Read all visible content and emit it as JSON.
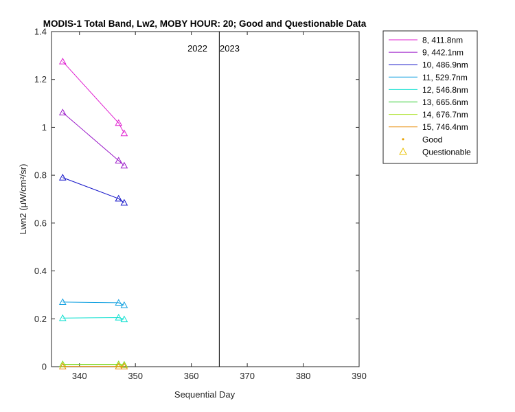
{
  "chart_data": {
    "type": "line",
    "title": "MODIS-1 Total Band, Lw2, MOBY HOUR: 20;  Good and Questionable Data",
    "xlabel": "Sequential Day",
    "ylabel": "Lwn2 (μW/cm²/sr)",
    "xlim": [
      335,
      390
    ],
    "ylim": [
      0,
      1.4
    ],
    "xticks": [
      340,
      350,
      360,
      370,
      380,
      390
    ],
    "yticks": [
      0,
      0.2,
      0.4,
      0.6,
      0.8,
      1,
      1.2,
      1.4
    ],
    "grid": false,
    "legend_position": "outside-right",
    "year_divider": {
      "x": 365,
      "left_label": "2022",
      "right_label": "2023"
    },
    "series": [
      {
        "name": "8, 411.8nm",
        "color": "#e020d0",
        "x": [
          337,
          347,
          348
        ],
        "y": [
          1.275,
          1.018,
          0.975
        ],
        "marker": "questionable"
      },
      {
        "name": "9, 442.1nm",
        "color": "#9a18c8",
        "x": [
          337,
          347,
          348
        ],
        "y": [
          1.062,
          0.861,
          0.84
        ],
        "marker": "questionable"
      },
      {
        "name": "10, 486.9nm",
        "color": "#1010c8",
        "x": [
          337,
          347,
          348
        ],
        "y": [
          0.79,
          0.702,
          0.685
        ],
        "marker": "questionable"
      },
      {
        "name": "11, 529.7nm",
        "color": "#10a0e0",
        "x": [
          337,
          347,
          348
        ],
        "y": [
          0.27,
          0.267,
          0.257
        ],
        "marker": "questionable"
      },
      {
        "name": "12, 546.8nm",
        "color": "#10e0d0",
        "x": [
          337,
          347,
          348
        ],
        "y": [
          0.203,
          0.205,
          0.198
        ],
        "marker": "questionable"
      },
      {
        "name": "13, 665.6nm",
        "color": "#20c820",
        "x": [
          337,
          347,
          348
        ],
        "y": [
          0.01,
          0.01,
          0.008
        ],
        "marker": "questionable"
      },
      {
        "name": "14, 676.7nm",
        "color": "#a8e020",
        "x": [
          337,
          347,
          348
        ],
        "y": [
          0.009,
          0.009,
          0.007
        ],
        "marker": "questionable"
      },
      {
        "name": "15, 746.4nm",
        "color": "#e89010",
        "x": [
          337,
          347,
          348
        ],
        "y": [
          0.001,
          0.001,
          0.001
        ],
        "marker": "questionable"
      }
    ],
    "legend_markers": [
      {
        "label": "Good",
        "color": "#e8a000",
        "symbol": "dot"
      },
      {
        "label": "Questionable",
        "color": "#e8c000",
        "symbol": "triangle"
      }
    ]
  }
}
